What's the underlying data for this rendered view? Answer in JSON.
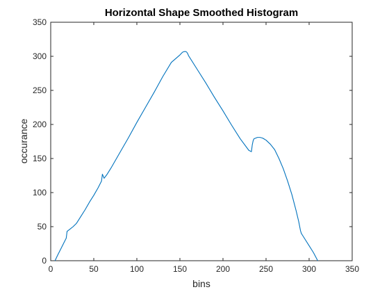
{
  "chart_data": {
    "type": "line",
    "title": "Horizontal Shape Smoothed Histogram",
    "xlabel": "bins",
    "ylabel": "occurance",
    "xlim": [
      0,
      350
    ],
    "ylim": [
      0,
      350
    ],
    "xticks": [
      0,
      50,
      100,
      150,
      200,
      250,
      300,
      350
    ],
    "yticks": [
      0,
      50,
      100,
      150,
      200,
      250,
      300,
      350
    ],
    "grid": false,
    "series_color": "#0072BD",
    "series": [
      {
        "x": [
          5,
          8,
          12,
          16,
          18,
          19,
          22,
          26,
          30,
          35,
          40,
          45,
          50,
          55,
          59,
          60,
          61,
          62,
          65,
          70,
          80,
          90,
          100,
          110,
          120,
          130,
          140,
          150,
          153,
          155,
          157,
          158,
          159,
          160,
          170,
          180,
          190,
          200,
          210,
          220,
          230,
          233,
          234,
          235,
          236,
          238,
          240,
          243,
          246,
          250,
          255,
          260,
          265,
          270,
          275,
          280,
          285,
          288,
          290,
          291,
          292,
          295,
          300,
          305,
          310
        ],
        "y": [
          0,
          8,
          18,
          28,
          33,
          43,
          46,
          50,
          55,
          65,
          75,
          86,
          96,
          107,
          117,
          127,
          124,
          121,
          126,
          136,
          158,
          180,
          203,
          225,
          247,
          270,
          291,
          302,
          306,
          307,
          307,
          306,
          304,
          301,
          281,
          261,
          240,
          220,
          199,
          179,
          162,
          160,
          170,
          176,
          179,
          180,
          181,
          181,
          180,
          177,
          171,
          163,
          150,
          135,
          117,
          97,
          73,
          57,
          44,
          40,
          38,
          32,
          22,
          12,
          0
        ]
      }
    ]
  }
}
